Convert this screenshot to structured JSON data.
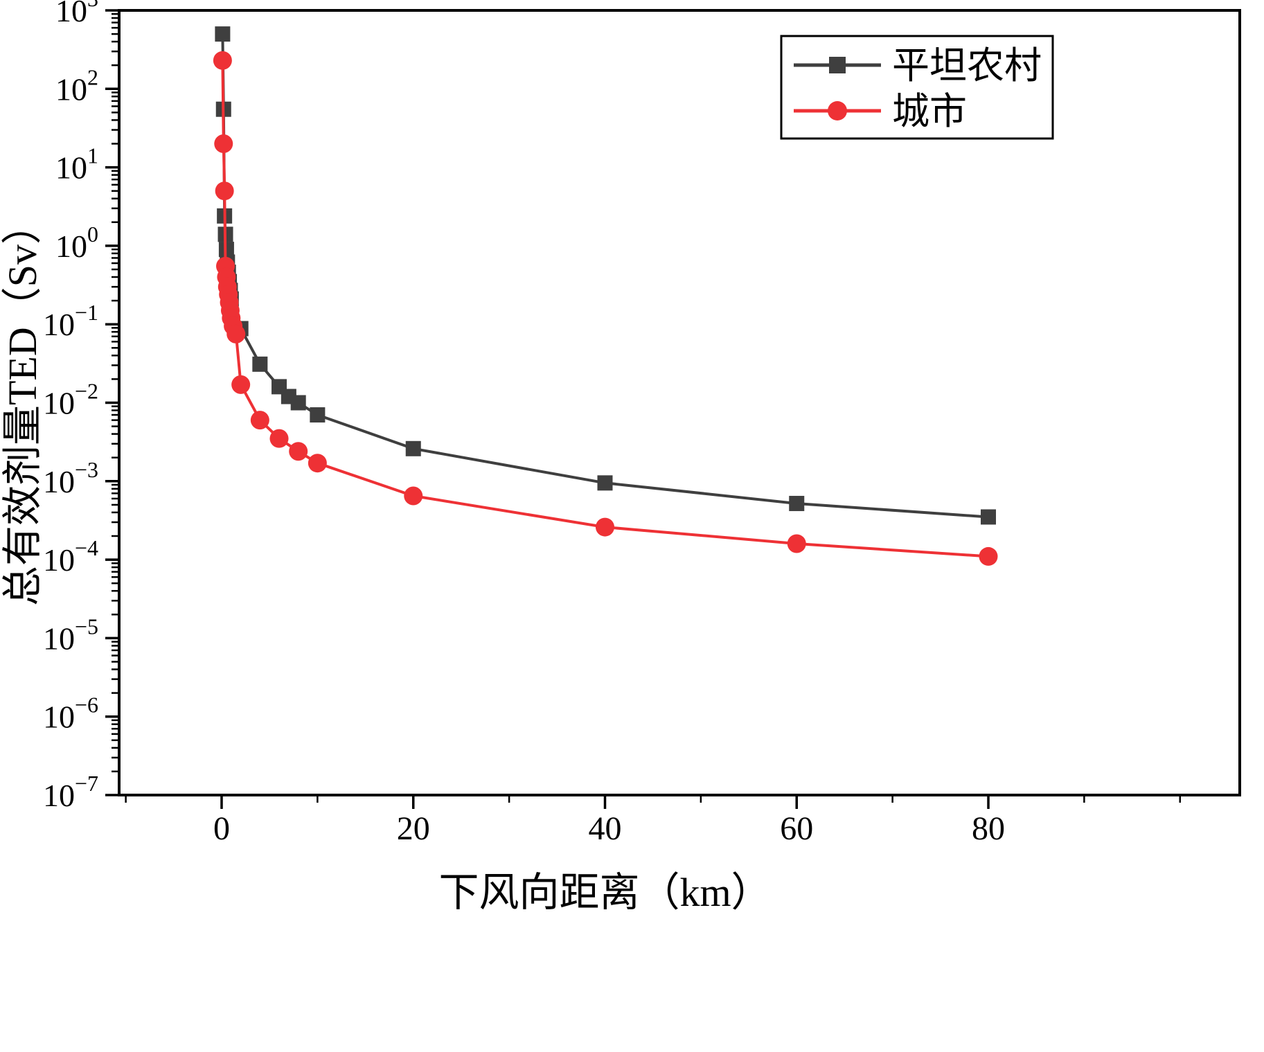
{
  "figure": {
    "background": "#ffffff",
    "frame_color": "#000000"
  },
  "chart_data": {
    "type": "line",
    "title": "",
    "xlabel": "下风向距离（km）",
    "ylabel": "总有效剂量TED（Sv）",
    "x_ticks": [
      0,
      20,
      40,
      60,
      80
    ],
    "x_minor_ticks": [
      -10,
      10,
      30,
      50,
      70,
      90,
      100
    ],
    "y_tick_exponents": [
      3,
      2,
      1,
      0,
      -1,
      -2,
      -3,
      -4,
      -5,
      -6,
      -7
    ],
    "x_range_km": [
      -10.7,
      106.2
    ],
    "y_range_exponents": [
      -7,
      3
    ],
    "grid": false,
    "legend_position": "top-right",
    "series": [
      {
        "name": "平坦农村",
        "color": "#3f3f3f",
        "marker": "square",
        "points": [
          [
            0.1,
            500
          ],
          [
            0.2,
            55
          ],
          [
            0.3,
            2.4
          ],
          [
            0.4,
            1.4
          ],
          [
            0.5,
            0.9
          ],
          [
            0.6,
            0.62
          ],
          [
            0.7,
            0.46
          ],
          [
            0.8,
            0.35
          ],
          [
            0.9,
            0.27
          ],
          [
            1,
            0.21
          ],
          [
            2,
            0.088
          ],
          [
            4,
            0.031
          ],
          [
            6,
            0.016
          ],
          [
            7,
            0.012
          ],
          [
            8,
            0.01
          ],
          [
            10,
            0.007
          ],
          [
            20,
            0.0026
          ],
          [
            40,
            0.00095
          ],
          [
            60,
            0.00052
          ],
          [
            80,
            0.00035
          ]
        ]
      },
      {
        "name": "城市",
        "color": "#ee3135",
        "marker": "circle",
        "points": [
          [
            0.1,
            230
          ],
          [
            0.2,
            20
          ],
          [
            0.3,
            5
          ],
          [
            0.4,
            0.55
          ],
          [
            0.5,
            0.4
          ],
          [
            0.6,
            0.3
          ],
          [
            0.7,
            0.24
          ],
          [
            0.8,
            0.19
          ],
          [
            0.9,
            0.15
          ],
          [
            1,
            0.12
          ],
          [
            1.2,
            0.095
          ],
          [
            1.5,
            0.075
          ],
          [
            2,
            0.017
          ],
          [
            4,
            0.006
          ],
          [
            6,
            0.0035
          ],
          [
            8,
            0.0024
          ],
          [
            10,
            0.0017
          ],
          [
            20,
            0.00065
          ],
          [
            40,
            0.00026
          ],
          [
            60,
            0.00016
          ],
          [
            80,
            0.00011
          ]
        ]
      }
    ]
  }
}
